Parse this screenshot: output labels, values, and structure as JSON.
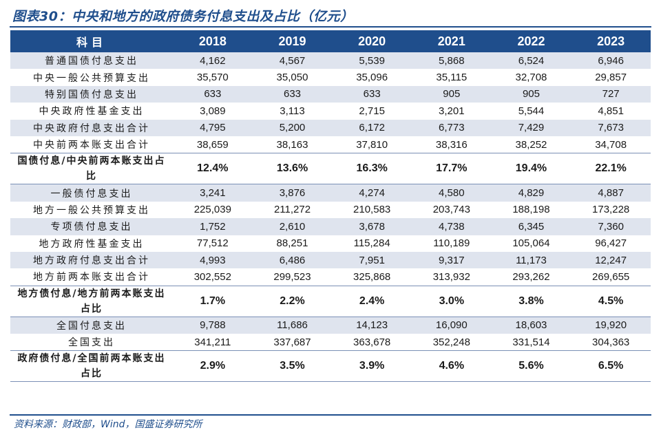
{
  "title": "图表30：中央和地方的政府债务付息支出及占比（亿元）",
  "source": "资料来源：财政部，Wind，国盛证券研究所",
  "header": {
    "item_label": "科目",
    "years": [
      "2018",
      "2019",
      "2020",
      "2021",
      "2022",
      "2023"
    ]
  },
  "rows": [
    {
      "label": "普通国债付息支出",
      "values": [
        "4,162",
        "4,567",
        "5,539",
        "5,868",
        "6,524",
        "6,946"
      ]
    },
    {
      "label": "中央一般公共预算支出",
      "values": [
        "35,570",
        "35,050",
        "35,096",
        "35,115",
        "32,708",
        "29,857"
      ]
    },
    {
      "label": "特别国债付息支出",
      "values": [
        "633",
        "633",
        "633",
        "905",
        "905",
        "727"
      ]
    },
    {
      "label": "中央政府性基金支出",
      "values": [
        "3,089",
        "3,113",
        "2,715",
        "3,201",
        "5,544",
        "4,851"
      ]
    },
    {
      "label": "中央政府付息支出合计",
      "values": [
        "4,795",
        "5,200",
        "6,172",
        "6,773",
        "7,429",
        "7,673"
      ]
    },
    {
      "label": "中央前两本账支出合计",
      "values": [
        "38,659",
        "38,163",
        "37,810",
        "38,316",
        "38,252",
        "34,708"
      ]
    },
    {
      "label": "国债付息/中央前两本账支出占比",
      "values": [
        "12.4%",
        "13.6%",
        "16.3%",
        "17.7%",
        "19.4%",
        "22.1%"
      ],
      "ratio": true
    },
    {
      "label": "一般债付息支出",
      "values": [
        "3,241",
        "3,876",
        "4,274",
        "4,580",
        "4,829",
        "4,887"
      ]
    },
    {
      "label": "地方一般公共预算支出",
      "values": [
        "225,039",
        "211,272",
        "210,583",
        "203,743",
        "188,198",
        "173,228"
      ]
    },
    {
      "label": "专项债付息支出",
      "values": [
        "1,752",
        "2,610",
        "3,678",
        "4,738",
        "6,345",
        "7,360"
      ]
    },
    {
      "label": "地方政府性基金支出",
      "values": [
        "77,512",
        "88,251",
        "115,284",
        "110,189",
        "105,064",
        "96,427"
      ]
    },
    {
      "label": "地方政府付息支出合计",
      "values": [
        "4,993",
        "6,486",
        "7,951",
        "9,317",
        "11,173",
        "12,247"
      ]
    },
    {
      "label": "地方前两本账支出合计",
      "values": [
        "302,552",
        "299,523",
        "325,868",
        "313,932",
        "293,262",
        "269,655"
      ]
    },
    {
      "label": "地方债付息/地方前两本账支出占比",
      "values": [
        "1.7%",
        "2.2%",
        "2.4%",
        "3.0%",
        "3.8%",
        "4.5%"
      ],
      "ratio": true
    },
    {
      "label": "全国付息支出",
      "values": [
        "9,788",
        "11,686",
        "14,123",
        "16,090",
        "18,603",
        "19,920"
      ]
    },
    {
      "label": "全国支出",
      "values": [
        "341,211",
        "337,687",
        "363,678",
        "352,248",
        "331,514",
        "304,363"
      ]
    },
    {
      "label": "政府债付息/全国前两本账支出占比",
      "values": [
        "2.9%",
        "3.5%",
        "3.9%",
        "4.6%",
        "5.6%",
        "6.5%"
      ],
      "ratio": true
    }
  ]
}
